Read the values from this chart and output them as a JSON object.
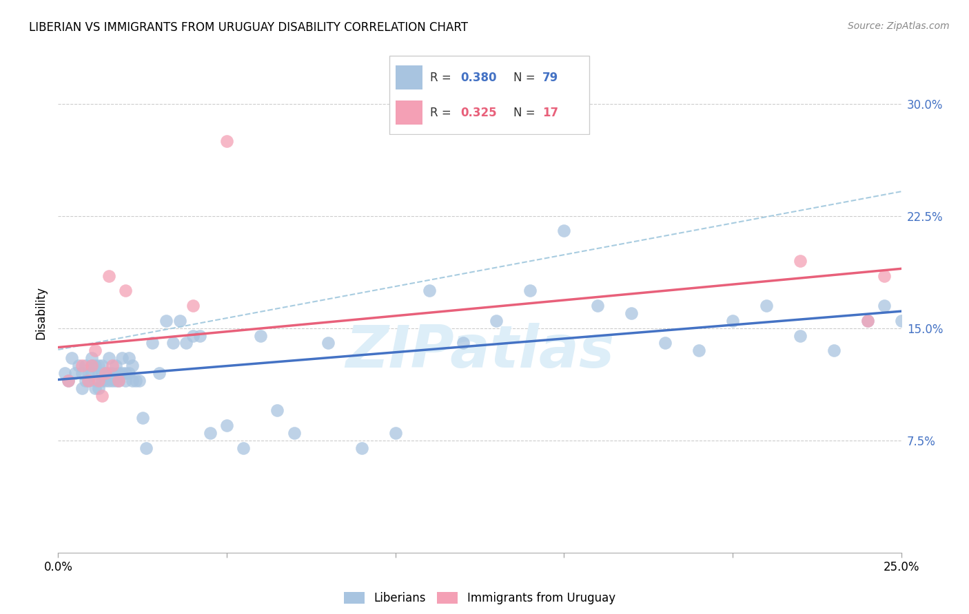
{
  "title": "LIBERIAN VS IMMIGRANTS FROM URUGUAY DISABILITY CORRELATION CHART",
  "source": "Source: ZipAtlas.com",
  "ylabel": "Disability",
  "xlim": [
    0.0,
    0.25
  ],
  "ylim": [
    0.0,
    0.32
  ],
  "yticks": [
    0.075,
    0.15,
    0.225,
    0.3
  ],
  "ytick_labels": [
    "7.5%",
    "15.0%",
    "22.5%",
    "30.0%"
  ],
  "xticks": [
    0.0,
    0.05,
    0.1,
    0.15,
    0.2,
    0.25
  ],
  "xtick_labels": [
    "0.0%",
    "",
    "",
    "",
    "",
    "25.0%"
  ],
  "legend_blue_R": "0.380",
  "legend_blue_N": "79",
  "legend_pink_R": "0.325",
  "legend_pink_N": "17",
  "blue_scatter_color": "#a8c4e0",
  "pink_scatter_color": "#f4a0b5",
  "blue_line_color": "#4472c4",
  "pink_line_color": "#e8607a",
  "blue_dash_color": "#a8cce0",
  "watermark_color": "#ddeef8",
  "blue_x": [
    0.002,
    0.003,
    0.004,
    0.005,
    0.006,
    0.007,
    0.007,
    0.008,
    0.008,
    0.009,
    0.009,
    0.01,
    0.01,
    0.01,
    0.011,
    0.011,
    0.011,
    0.012,
    0.012,
    0.012,
    0.013,
    0.013,
    0.013,
    0.014,
    0.014,
    0.015,
    0.015,
    0.015,
    0.016,
    0.016,
    0.017,
    0.017,
    0.018,
    0.018,
    0.019,
    0.019,
    0.02,
    0.02,
    0.021,
    0.021,
    0.022,
    0.022,
    0.023,
    0.024,
    0.025,
    0.026,
    0.028,
    0.03,
    0.032,
    0.034,
    0.036,
    0.038,
    0.04,
    0.042,
    0.045,
    0.05,
    0.055,
    0.06,
    0.065,
    0.07,
    0.08,
    0.09,
    0.1,
    0.11,
    0.12,
    0.13,
    0.14,
    0.15,
    0.16,
    0.17,
    0.18,
    0.19,
    0.2,
    0.21,
    0.22,
    0.23,
    0.24,
    0.245,
    0.25
  ],
  "blue_y": [
    0.12,
    0.115,
    0.13,
    0.12,
    0.125,
    0.12,
    0.11,
    0.115,
    0.125,
    0.12,
    0.115,
    0.125,
    0.13,
    0.12,
    0.11,
    0.115,
    0.125,
    0.12,
    0.125,
    0.11,
    0.115,
    0.12,
    0.125,
    0.115,
    0.12,
    0.13,
    0.115,
    0.12,
    0.115,
    0.12,
    0.115,
    0.125,
    0.115,
    0.12,
    0.12,
    0.13,
    0.115,
    0.12,
    0.12,
    0.13,
    0.115,
    0.125,
    0.115,
    0.115,
    0.09,
    0.07,
    0.14,
    0.12,
    0.155,
    0.14,
    0.155,
    0.14,
    0.145,
    0.145,
    0.08,
    0.085,
    0.07,
    0.145,
    0.095,
    0.08,
    0.14,
    0.07,
    0.08,
    0.175,
    0.14,
    0.155,
    0.175,
    0.215,
    0.165,
    0.16,
    0.14,
    0.135,
    0.155,
    0.165,
    0.145,
    0.135,
    0.155,
    0.165,
    0.155
  ],
  "pink_x": [
    0.003,
    0.007,
    0.009,
    0.01,
    0.011,
    0.012,
    0.013,
    0.014,
    0.015,
    0.016,
    0.018,
    0.02,
    0.04,
    0.05,
    0.22,
    0.24,
    0.245
  ],
  "pink_y": [
    0.115,
    0.125,
    0.115,
    0.125,
    0.135,
    0.115,
    0.105,
    0.12,
    0.185,
    0.125,
    0.115,
    0.175,
    0.165,
    0.275,
    0.195,
    0.155,
    0.185
  ]
}
